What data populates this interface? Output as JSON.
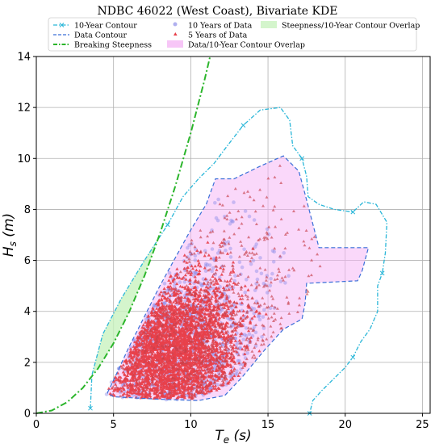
{
  "chart_data": {
    "type": "scatter",
    "title": "NDBC 46022 (West Coast), Bivariate KDE",
    "xlabel": "T_e (s)",
    "ylabel": "H_s (m)",
    "xlim": [
      0,
      25.5
    ],
    "ylim": [
      0,
      14
    ],
    "xticks": [
      0,
      5,
      10,
      15,
      20,
      25
    ],
    "yticks": [
      0,
      2,
      4,
      6,
      8,
      10,
      12,
      14
    ],
    "grid": true,
    "legend_position": "top (above plot)",
    "legend": [
      {
        "label": "10-Year Contour",
        "color": "#29b6d8",
        "style": "dash-dot with x markers"
      },
      {
        "label": "Data Contour",
        "color": "#3a6fd8",
        "style": "dashed"
      },
      {
        "label": "Breaking Steepness",
        "color": "#2bb52b",
        "style": "dash-dot"
      },
      {
        "label": "10 Years of Data",
        "color": "#8f8fe8",
        "style": "circle markers"
      },
      {
        "label": "5 Years of Data",
        "color": "#e8404a",
        "style": "triangle markers"
      },
      {
        "label": "Data/10-Year Contour Overlap",
        "color": "#f5b8f5",
        "style": "filled region"
      },
      {
        "label": "Steepness/10-Year Contour Overlap",
        "color": "#c9f2bf",
        "style": "filled region"
      }
    ],
    "series": [
      {
        "name": "10-Year Contour",
        "points": [
          [
            3.5,
            0.2
          ],
          [
            3.6,
            1.5
          ],
          [
            4.3,
            3.1
          ],
          [
            5.5,
            4.5
          ],
          [
            7.0,
            6.0
          ],
          [
            8.5,
            7.4
          ],
          [
            9.5,
            8.5
          ],
          [
            10.5,
            9.2
          ],
          [
            11.5,
            9.8
          ],
          [
            12.5,
            10.6
          ],
          [
            13.4,
            11.3
          ],
          [
            14.5,
            11.9
          ],
          [
            15.8,
            12.0
          ],
          [
            16.4,
            11.5
          ],
          [
            16.6,
            10.5
          ],
          [
            17.2,
            10.0
          ],
          [
            17.5,
            9.3
          ],
          [
            17.6,
            8.5
          ],
          [
            18.3,
            8.2
          ],
          [
            19.3,
            8.0
          ],
          [
            20.5,
            7.9
          ],
          [
            21.2,
            8.3
          ],
          [
            22.0,
            8.2
          ],
          [
            22.7,
            7.5
          ],
          [
            22.6,
            6.3
          ],
          [
            22.4,
            5.5
          ],
          [
            22.1,
            5.0
          ],
          [
            22.1,
            4.0
          ],
          [
            21.6,
            3.3
          ],
          [
            21.0,
            2.8
          ],
          [
            20.5,
            2.2
          ],
          [
            20.0,
            1.8
          ],
          [
            19.5,
            1.5
          ],
          [
            18.5,
            0.9
          ],
          [
            17.9,
            0.5
          ],
          [
            17.7,
            0.0
          ]
        ]
      },
      {
        "name": "Data Contour",
        "points": [
          [
            4.6,
            0.8
          ],
          [
            5.0,
            1.3
          ],
          [
            6.0,
            2.6
          ],
          [
            7.0,
            3.8
          ],
          [
            8.0,
            5.0
          ],
          [
            9.0,
            6.1
          ],
          [
            10.0,
            7.2
          ],
          [
            11.0,
            8.2
          ],
          [
            11.6,
            9.2
          ],
          [
            12.8,
            9.2
          ],
          [
            14.5,
            9.7
          ],
          [
            16.0,
            10.1
          ],
          [
            17.0,
            9.5
          ],
          [
            17.4,
            8.6
          ],
          [
            18.0,
            7.2
          ],
          [
            18.3,
            6.5
          ],
          [
            21.5,
            6.5
          ],
          [
            21.1,
            5.6
          ],
          [
            20.8,
            5.2
          ],
          [
            17.5,
            5.1
          ],
          [
            17.4,
            4.3
          ],
          [
            17.2,
            3.7
          ],
          [
            16.0,
            3.3
          ],
          [
            14.8,
            2.5
          ],
          [
            13.3,
            1.4
          ],
          [
            12.2,
            0.7
          ],
          [
            10.5,
            0.5
          ],
          [
            8.0,
            0.55
          ],
          [
            6.5,
            0.6
          ],
          [
            5.0,
            0.65
          ],
          [
            4.6,
            0.8
          ]
        ]
      },
      {
        "name": "Breaking Steepness",
        "points": [
          [
            0.0,
            0.0
          ],
          [
            1.0,
            0.11
          ],
          [
            2.0,
            0.44
          ],
          [
            3.0,
            0.99
          ],
          [
            4.0,
            1.76
          ],
          [
            5.0,
            2.75
          ],
          [
            6.0,
            3.96
          ],
          [
            7.0,
            5.39
          ],
          [
            8.0,
            7.04
          ],
          [
            9.0,
            8.91
          ],
          [
            10.0,
            11.0
          ],
          [
            10.9,
            13.1
          ],
          [
            11.25,
            14.0
          ]
        ]
      },
      {
        "name": "10 Years of Data",
        "envelope": [
          [
            4.3,
            0.75
          ],
          [
            5.0,
            1.4
          ],
          [
            6.0,
            2.5
          ],
          [
            7.0,
            3.7
          ],
          [
            8.0,
            4.9
          ],
          [
            9.0,
            6.0
          ],
          [
            10.0,
            7.0
          ],
          [
            11.0,
            8.0
          ],
          [
            12.0,
            8.6
          ],
          [
            13.0,
            8.4
          ],
          [
            14.0,
            8.0
          ],
          [
            15.0,
            7.5
          ],
          [
            16.0,
            6.7
          ],
          [
            16.5,
            5.8
          ],
          [
            16.2,
            4.4
          ],
          [
            15.2,
            3.3
          ],
          [
            14.0,
            2.2
          ],
          [
            12.5,
            1.1
          ],
          [
            10.0,
            0.5
          ],
          [
            7.0,
            0.55
          ],
          [
            5.0,
            0.65
          ],
          [
            4.3,
            0.75
          ]
        ]
      },
      {
        "name": "5 Years of Data",
        "envelope": [
          [
            4.5,
            0.8
          ],
          [
            6.0,
            2.4
          ],
          [
            8.0,
            4.7
          ],
          [
            10.0,
            6.8
          ],
          [
            12.0,
            8.4
          ],
          [
            13.5,
            9.2
          ],
          [
            15.0,
            9.6
          ],
          [
            16.0,
            10.0
          ],
          [
            17.0,
            8.8
          ],
          [
            18.0,
            7.0
          ],
          [
            18.5,
            6.5
          ],
          [
            21.0,
            6.5
          ],
          [
            18.0,
            5.2
          ],
          [
            17.0,
            4.0
          ],
          [
            15.5,
            3.0
          ],
          [
            14.0,
            2.0
          ],
          [
            12.5,
            1.1
          ],
          [
            10.0,
            0.55
          ],
          [
            7.0,
            0.6
          ],
          [
            5.0,
            0.65
          ],
          [
            4.5,
            0.8
          ]
        ]
      }
    ],
    "regions": [
      {
        "name": "Data/10-Year Contour Overlap",
        "points": [
          [
            4.6,
            0.8
          ],
          [
            5.0,
            1.3
          ],
          [
            6.0,
            2.6
          ],
          [
            7.0,
            3.8
          ],
          [
            8.0,
            5.0
          ],
          [
            9.0,
            6.1
          ],
          [
            10.0,
            7.2
          ],
          [
            11.0,
            8.2
          ],
          [
            11.6,
            9.2
          ],
          [
            12.8,
            9.2
          ],
          [
            14.5,
            9.7
          ],
          [
            16.0,
            10.1
          ],
          [
            17.0,
            9.5
          ],
          [
            17.4,
            8.6
          ],
          [
            18.0,
            7.2
          ],
          [
            18.3,
            6.5
          ],
          [
            21.5,
            6.5
          ],
          [
            21.1,
            5.6
          ],
          [
            20.8,
            5.2
          ],
          [
            17.5,
            5.1
          ],
          [
            17.4,
            4.3
          ],
          [
            17.2,
            3.7
          ],
          [
            16.0,
            3.3
          ],
          [
            14.8,
            2.5
          ],
          [
            13.3,
            1.4
          ],
          [
            12.2,
            0.7
          ],
          [
            10.5,
            0.5
          ],
          [
            8.0,
            0.55
          ],
          [
            6.5,
            0.6
          ],
          [
            5.0,
            0.65
          ],
          [
            4.6,
            0.8
          ]
        ]
      },
      {
        "name": "Steepness/10-Year Contour Overlap",
        "points": [
          [
            3.6,
            1.5
          ],
          [
            4.3,
            3.1
          ],
          [
            5.5,
            4.5
          ],
          [
            7.0,
            6.0
          ],
          [
            7.8,
            6.8
          ],
          [
            7.4,
            6.0
          ],
          [
            6.8,
            5.1
          ],
          [
            6.0,
            3.96
          ],
          [
            5.0,
            2.75
          ],
          [
            4.0,
            1.76
          ],
          [
            3.6,
            1.5
          ]
        ]
      }
    ]
  }
}
